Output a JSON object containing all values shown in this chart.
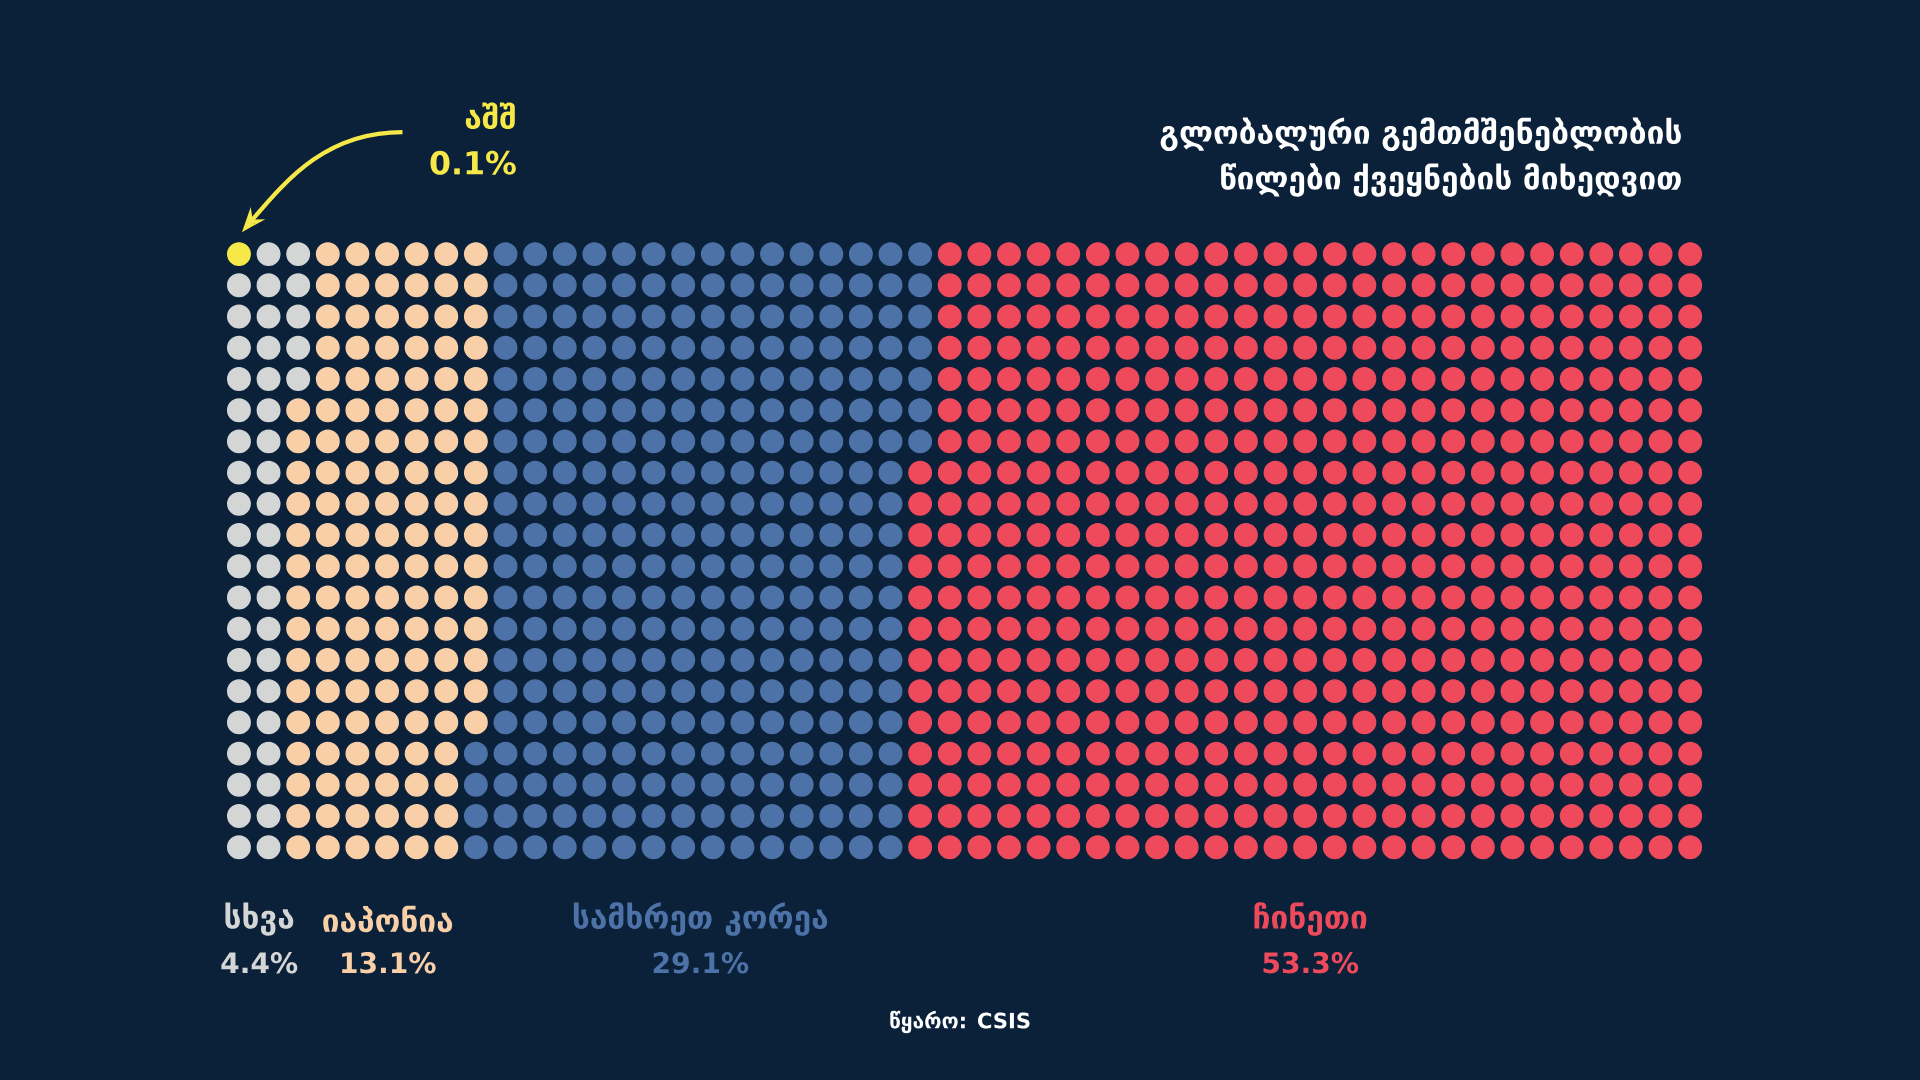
{
  "chart_data": {
    "type": "other",
    "title": "გლობალური გემთმშენებლობის წილები ქვეყნების მიხედვით",
    "categories": [
      "აშშ",
      "სხვა",
      "იაპონია",
      "სამხრეთ კორეა",
      "ჩინეთი"
    ],
    "values": [
      0.1,
      4.4,
      13.1,
      29.1,
      53.3
    ],
    "value_labels": [
      "0.1%",
      "4.4%",
      "13.1%",
      "29.1%",
      "53.3%"
    ],
    "colors": [
      "#f7e84a",
      "#d4d6d6",
      "#f9cfa8",
      "#4d72a8",
      "#ee4a5c"
    ],
    "annotations": [
      "წყარო: CSIS"
    ]
  }
}
